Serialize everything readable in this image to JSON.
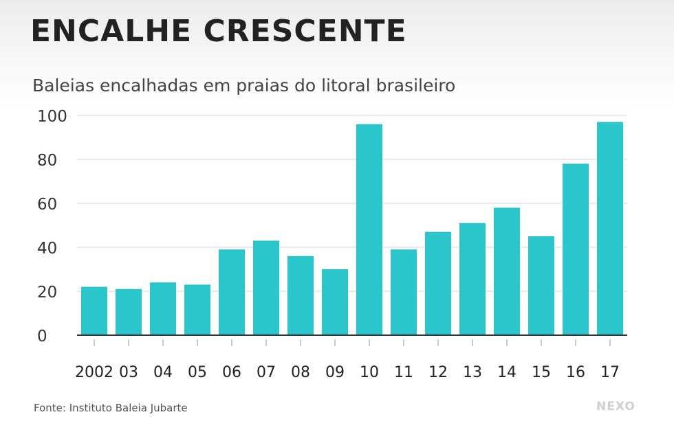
{
  "header": {
    "title": "ENCALHE CRESCENTE",
    "subtitle": "Baleias encalhadas em praias do litoral brasileiro"
  },
  "footer": {
    "source": "Fonte: Instituto Baleia Jubarte",
    "logo": "NEXO"
  },
  "colors": {
    "bar": "#2bc6cc",
    "grid": "#e3e3e3",
    "axis": "#333333"
  },
  "chart_data": {
    "type": "bar",
    "title": "ENCALHE CRESCENTE",
    "subtitle": "Baleias encalhadas em praias do litoral brasileiro",
    "xlabel": "",
    "ylabel": "",
    "categories": [
      "2002",
      "03",
      "04",
      "05",
      "06",
      "07",
      "08",
      "09",
      "10",
      "11",
      "12",
      "13",
      "14",
      "15",
      "16",
      "17"
    ],
    "values": [
      22,
      21,
      24,
      23,
      39,
      43,
      36,
      30,
      96,
      39,
      47,
      51,
      58,
      45,
      78,
      97
    ],
    "ylim": [
      0,
      100
    ],
    "yticks": [
      0,
      20,
      40,
      60,
      80,
      100
    ],
    "grid": true,
    "legend": "none"
  }
}
